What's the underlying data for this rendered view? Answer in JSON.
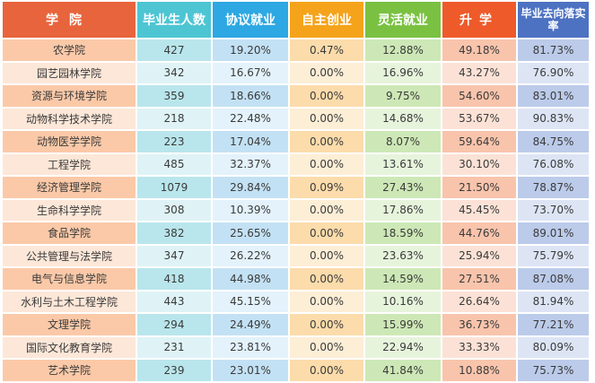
{
  "table": {
    "headers": [
      {
        "label": "学院"
      },
      {
        "label": "毕业生人数"
      },
      {
        "label": "协议就业"
      },
      {
        "label": "自主创业"
      },
      {
        "label": "灵活就业"
      },
      {
        "label": "升学"
      },
      {
        "label": "毕业去向落实率"
      }
    ],
    "rows": [
      [
        "农学院",
        "427",
        "19.20%",
        "0.47%",
        "12.88%",
        "49.18%",
        "81.73%"
      ],
      [
        "园艺园林学院",
        "342",
        "16.67%",
        "0.00%",
        "16.96%",
        "43.27%",
        "76.90%"
      ],
      [
        "资源与环境学院",
        "359",
        "18.66%",
        "0.00%",
        "9.75%",
        "54.60%",
        "83.01%"
      ],
      [
        "动物科学技术学院",
        "218",
        "22.48%",
        "0.00%",
        "14.68%",
        "53.67%",
        "90.83%"
      ],
      [
        "动物医学学院",
        "223",
        "17.04%",
        "0.00%",
        "8.07%",
        "59.64%",
        "84.75%"
      ],
      [
        "工程学院",
        "485",
        "32.37%",
        "0.00%",
        "13.61%",
        "30.10%",
        "76.08%"
      ],
      [
        "经济管理学院",
        "1079",
        "29.84%",
        "0.09%",
        "27.43%",
        "21.50%",
        "78.87%"
      ],
      [
        "生命科学学院",
        "308",
        "10.39%",
        "0.00%",
        "17.86%",
        "45.45%",
        "73.70%"
      ],
      [
        "食品学院",
        "382",
        "25.65%",
        "0.00%",
        "18.59%",
        "44.76%",
        "89.01%"
      ],
      [
        "公共管理与法学院",
        "347",
        "26.22%",
        "0.00%",
        "23.63%",
        "25.94%",
        "75.79%"
      ],
      [
        "电气与信息学院",
        "418",
        "44.98%",
        "0.00%",
        "14.59%",
        "27.51%",
        "87.08%"
      ],
      [
        "水利与土木工程学院",
        "443",
        "45.15%",
        "0.00%",
        "10.16%",
        "26.64%",
        "81.94%"
      ],
      [
        "文理学院",
        "294",
        "24.49%",
        "0.00%",
        "15.99%",
        "36.73%",
        "77.21%"
      ],
      [
        "国际文化教育学院",
        "231",
        "23.81%",
        "0.00%",
        "22.94%",
        "33.33%",
        "80.09%"
      ],
      [
        "艺术学院",
        "239",
        "23.01%",
        "0.00%",
        "41.84%",
        "10.88%",
        "75.73%"
      ]
    ]
  }
}
